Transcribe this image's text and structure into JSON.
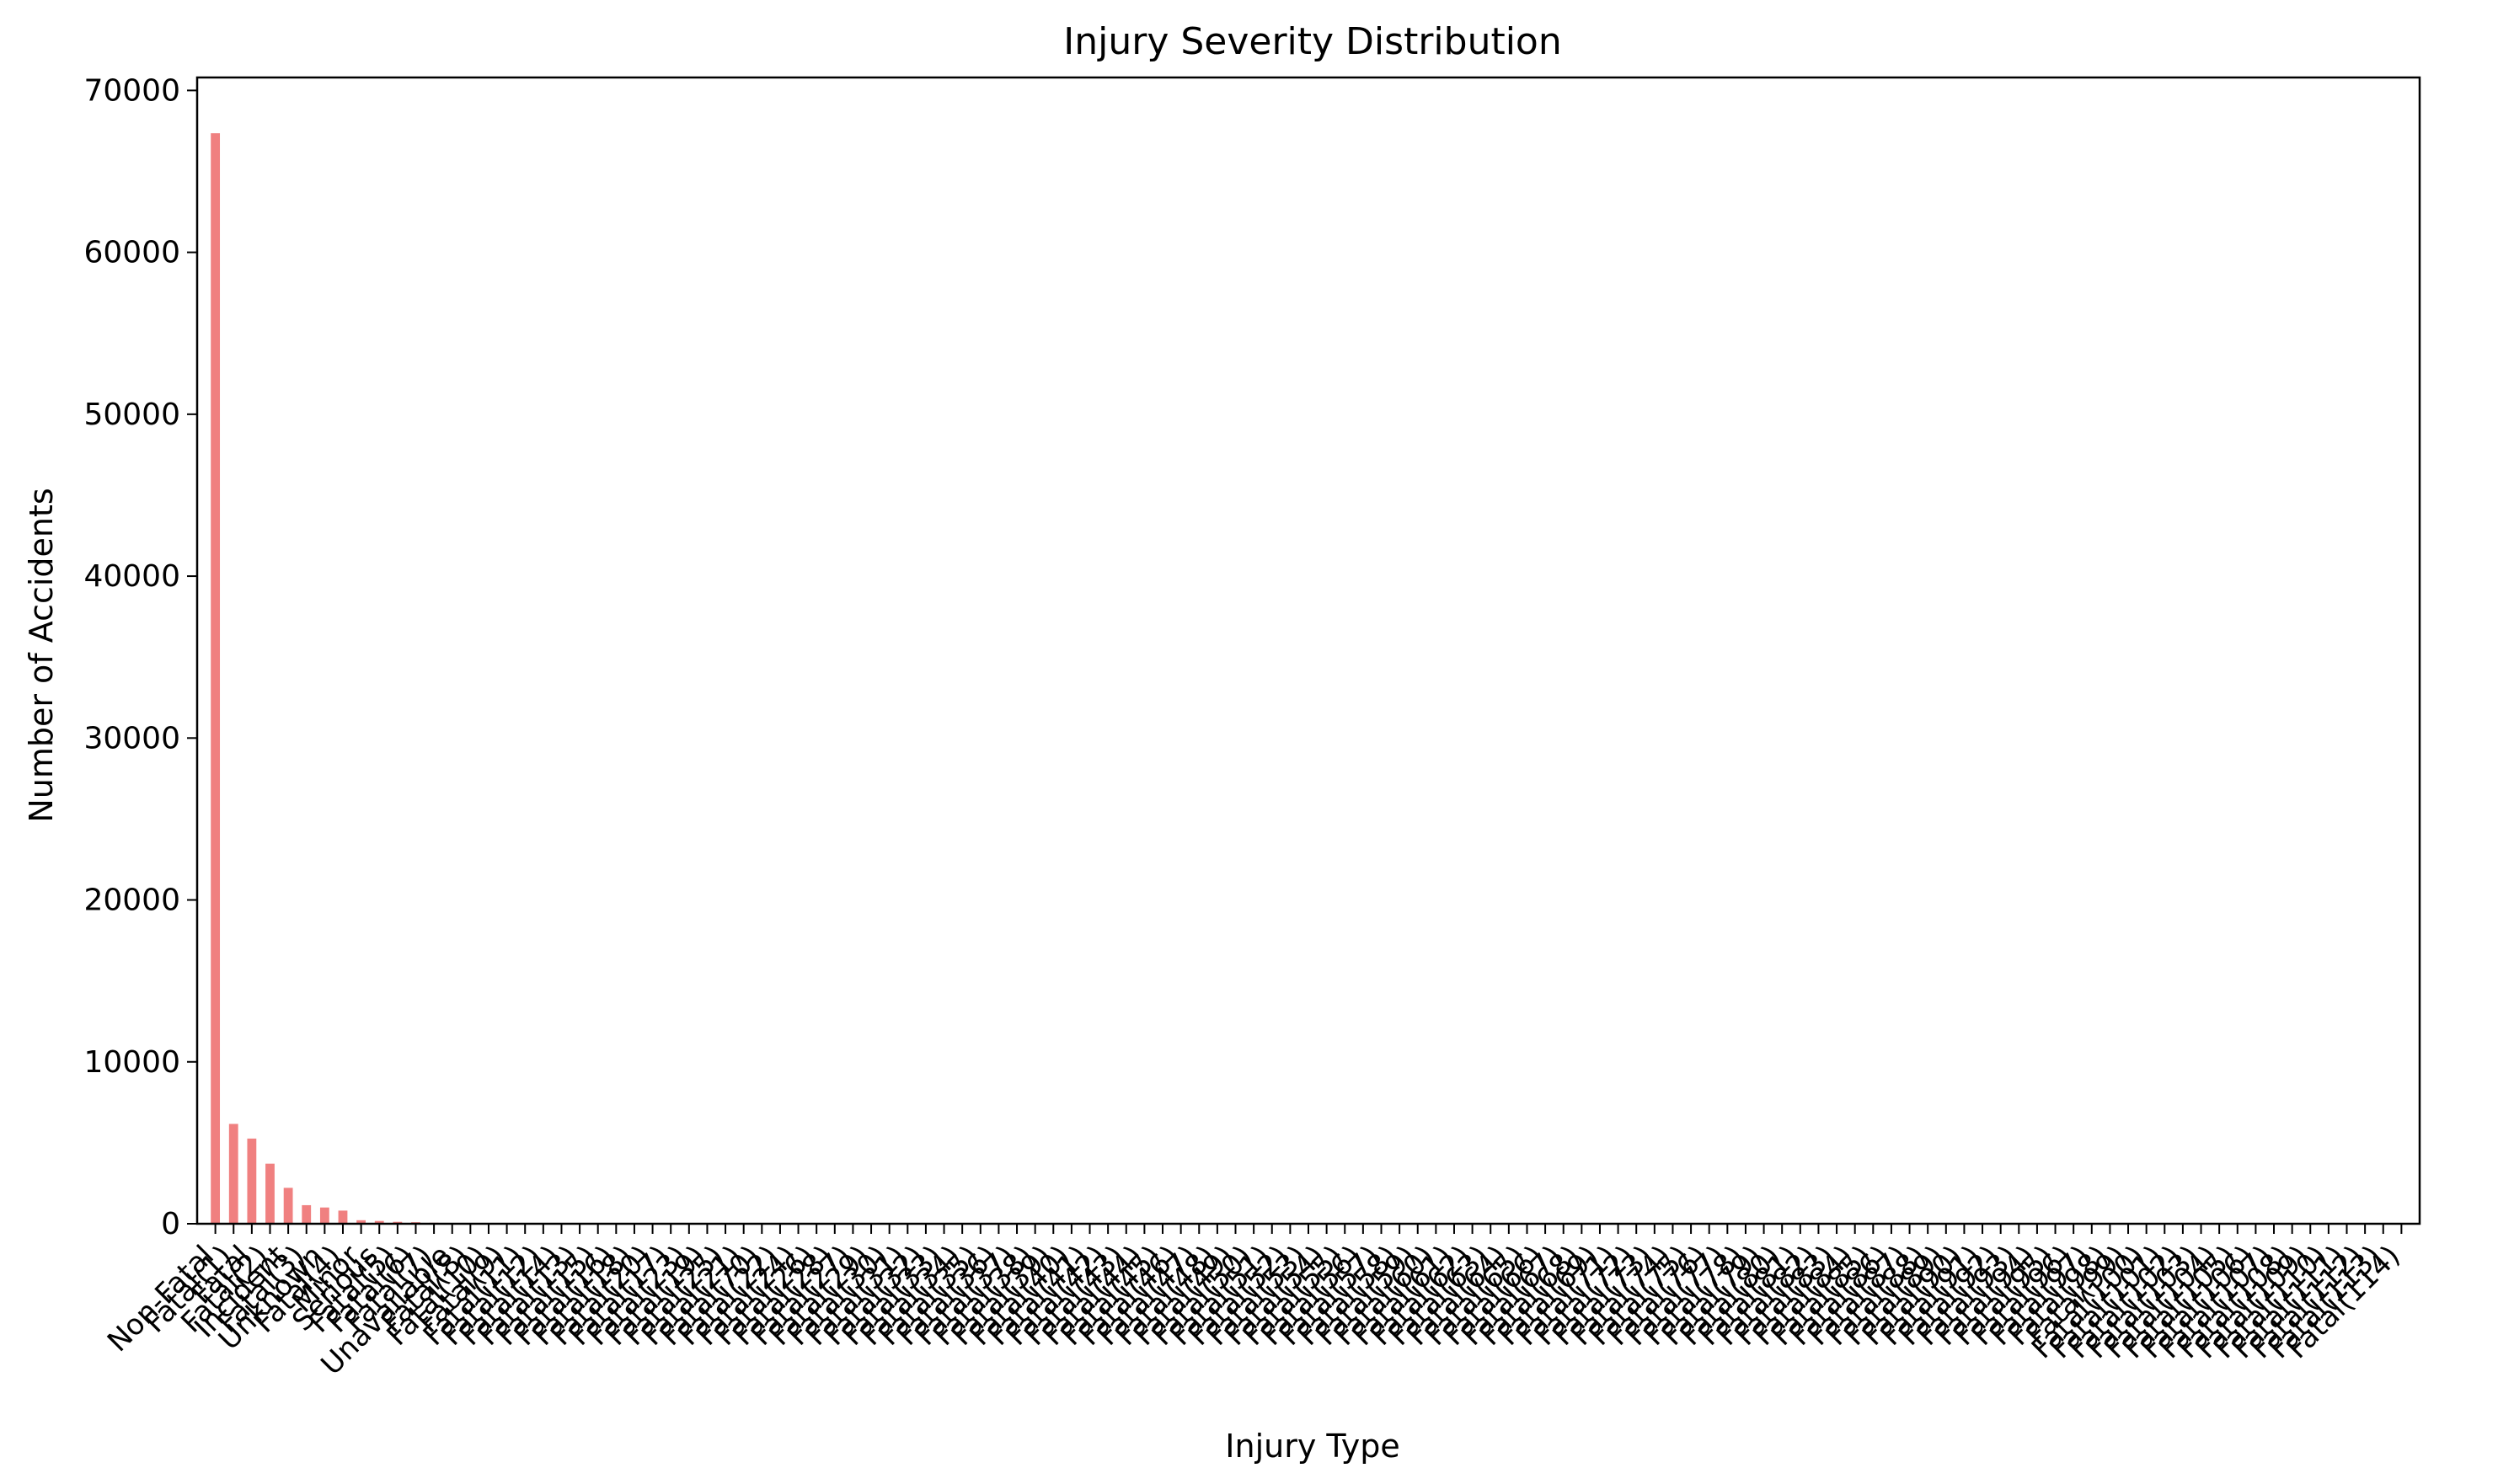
{
  "chart_data": {
    "type": "bar",
    "title": "Injury Severity Distribution",
    "xlabel": "Injury Type",
    "ylabel": "Number of Accidents",
    "ylim": [
      0,
      70800
    ],
    "yticks": [
      0,
      10000,
      20000,
      30000,
      40000,
      50000,
      60000,
      70000
    ],
    "grid": false,
    "bar_color": "#f08080",
    "categories": [
      "Non-Fatal",
      "Fatal(1)",
      "Fatal",
      "Fatal(2)",
      "Incident",
      "Fatal(3)",
      "Unknown",
      "Fatal(4)",
      "Minor",
      "Serious",
      "Fatal(5)",
      "Fatal(6)",
      "Fatal(7)",
      "Unavailable",
      "Fatal(8)",
      "Fatal(10)",
      "Fatal(9)",
      "Fatal(11)",
      "Fatal(12)",
      "Fatal(14)",
      "Fatal(13)",
      "Fatal(15)",
      "Fatal(16)",
      "Fatal(18)",
      "Fatal(20)",
      "Fatal(17)",
      "Fatal(23)",
      "Fatal(19)",
      "Fatal(25)",
      "Fatal(21)",
      "Fatal(70)",
      "Fatal(22)",
      "Fatal(24)",
      "Fatal(26)",
      "Fatal(28)",
      "Fatal(27)",
      "Fatal(29)",
      "Fatal(30)",
      "Fatal(31)",
      "Fatal(32)",
      "Fatal(33)",
      "Fatal(34)",
      "Fatal(35)",
      "Fatal(36)",
      "Fatal(37)",
      "Fatal(38)",
      "Fatal(39)",
      "Fatal(40)",
      "Fatal(41)",
      "Fatal(42)",
      "Fatal(43)",
      "Fatal(44)",
      "Fatal(45)",
      "Fatal(46)",
      "Fatal(47)",
      "Fatal(48)",
      "Fatal(49)",
      "Fatal(50)",
      "Fatal(51)",
      "Fatal(52)",
      "Fatal(53)",
      "Fatal(54)",
      "Fatal(55)",
      "Fatal(56)",
      "Fatal(57)",
      "Fatal(58)",
      "Fatal(59)",
      "Fatal(60)",
      "Fatal(61)",
      "Fatal(62)",
      "Fatal(63)",
      "Fatal(64)",
      "Fatal(65)",
      "Fatal(66)",
      "Fatal(67)",
      "Fatal(68)",
      "Fatal(69)",
      "Fatal(71)",
      "Fatal(72)",
      "Fatal(73)",
      "Fatal(74)",
      "Fatal(75)",
      "Fatal(76)",
      "Fatal(77)",
      "Fatal(78)",
      "Fatal(79)",
      "Fatal(80)",
      "Fatal(81)",
      "Fatal(82)",
      "Fatal(83)",
      "Fatal(84)",
      "Fatal(85)",
      "Fatal(86)",
      "Fatal(87)",
      "Fatal(88)",
      "Fatal(89)",
      "Fatal(90)",
      "Fatal(91)",
      "Fatal(92)",
      "Fatal(93)",
      "Fatal(94)",
      "Fatal(95)",
      "Fatal(96)",
      "Fatal(97)",
      "Fatal(98)",
      "Fatal(99)",
      "Fatal(100)",
      "Fatal(101)",
      "Fatal(102)",
      "Fatal(103)",
      "Fatal(104)",
      "Fatal(105)",
      "Fatal(106)",
      "Fatal(107)",
      "Fatal(108)",
      "Fatal(109)",
      "Fatal(110)",
      "Fatal(111)",
      "Fatal(112)",
      "Fatal(113)",
      "Fatal(114)"
    ],
    "values": [
      67357,
      6167,
      5262,
      3711,
      2219,
      1147,
      1004,
      812,
      218,
      173,
      120,
      95,
      62,
      40,
      30,
      25,
      22,
      18,
      16,
      14,
      12,
      11,
      10,
      9,
      8,
      8,
      7,
      7,
      6,
      6,
      5,
      5,
      5,
      4,
      4,
      4,
      4,
      3,
      3,
      3,
      3,
      3,
      3,
      2,
      2,
      2,
      2,
      2,
      2,
      2,
      2,
      2,
      2,
      2,
      2,
      2,
      1,
      1,
      1,
      1,
      1,
      1,
      1,
      1,
      1,
      1,
      1,
      1,
      1,
      1,
      1,
      1,
      1,
      1,
      1,
      1,
      1,
      1,
      1,
      1,
      1,
      1,
      1,
      1,
      1,
      1,
      1,
      1,
      1,
      1,
      1,
      1,
      1,
      1,
      1,
      1,
      1,
      1,
      1,
      1,
      1,
      1,
      1,
      1,
      1,
      1,
      1,
      1,
      1,
      1,
      1,
      1,
      1,
      1,
      1,
      1,
      1,
      1,
      1,
      1,
      1
    ]
  }
}
